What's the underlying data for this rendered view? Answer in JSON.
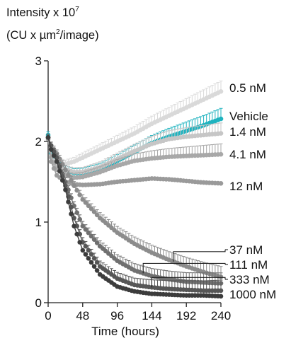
{
  "chart_data": {
    "type": "line",
    "title_line1": "Intensity x 10",
    "title_exp": "7",
    "title_line2_a": "(CU x µm",
    "title_line2_exp": "2",
    "title_line2_b": "/image)",
    "xlabel": "Time (hours)",
    "xlim": [
      0,
      240
    ],
    "ylim": [
      0,
      3
    ],
    "xticks": [
      0,
      48,
      96,
      144,
      192,
      240
    ],
    "yticks": [
      0,
      1,
      2,
      3
    ],
    "xtick_labels": [
      "0",
      "48",
      "96",
      "144",
      "192",
      "240"
    ],
    "ytick_labels": [
      "0",
      "1",
      "2",
      "3"
    ],
    "x_step": 4,
    "series": [
      {
        "name": "0.5 nM",
        "color": "#d9d9d9",
        "error_bars": true,
        "keypoints": [
          [
            0,
            2.05
          ],
          [
            4,
            1.85
          ],
          [
            12,
            1.75
          ],
          [
            24,
            1.72
          ],
          [
            36,
            1.75
          ],
          [
            48,
            1.8
          ],
          [
            72,
            1.9
          ],
          [
            96,
            2.0
          ],
          [
            120,
            2.1
          ],
          [
            144,
            2.22
          ],
          [
            168,
            2.32
          ],
          [
            192,
            2.42
          ],
          [
            216,
            2.52
          ],
          [
            240,
            2.62
          ]
        ]
      },
      {
        "name": "Vehicle",
        "color": "#1fb3bf",
        "error_bars": true,
        "keypoints": [
          [
            0,
            2.08
          ],
          [
            4,
            1.85
          ],
          [
            12,
            1.72
          ],
          [
            24,
            1.65
          ],
          [
            36,
            1.61
          ],
          [
            48,
            1.61
          ],
          [
            72,
            1.66
          ],
          [
            96,
            1.76
          ],
          [
            120,
            1.87
          ],
          [
            144,
            1.98
          ],
          [
            168,
            2.06
          ],
          [
            192,
            2.13
          ],
          [
            216,
            2.2
          ],
          [
            240,
            2.28
          ]
        ]
      },
      {
        "name": "1.4 nM",
        "color": "#c6c6c6",
        "error_bars": true,
        "keypoints": [
          [
            0,
            2.05
          ],
          [
            4,
            1.82
          ],
          [
            12,
            1.7
          ],
          [
            24,
            1.65
          ],
          [
            36,
            1.62
          ],
          [
            48,
            1.62
          ],
          [
            72,
            1.68
          ],
          [
            96,
            1.78
          ],
          [
            120,
            1.88
          ],
          [
            144,
            1.97
          ],
          [
            168,
            2.03
          ],
          [
            192,
            2.06
          ],
          [
            216,
            2.08
          ],
          [
            240,
            2.1
          ]
        ]
      },
      {
        "name": "4.1 nM",
        "color": "#a8a8a8",
        "error_bars": true,
        "keypoints": [
          [
            0,
            2.05
          ],
          [
            4,
            1.8
          ],
          [
            12,
            1.65
          ],
          [
            24,
            1.58
          ],
          [
            36,
            1.55
          ],
          [
            48,
            1.56
          ],
          [
            72,
            1.62
          ],
          [
            96,
            1.7
          ],
          [
            120,
            1.76
          ],
          [
            144,
            1.79
          ],
          [
            168,
            1.81
          ],
          [
            192,
            1.82
          ],
          [
            216,
            1.83
          ],
          [
            240,
            1.84
          ]
        ]
      },
      {
        "name": "12 nM",
        "color": "#9a9a9a",
        "error_bars": false,
        "keypoints": [
          [
            0,
            2.03
          ],
          [
            4,
            1.75
          ],
          [
            12,
            1.58
          ],
          [
            24,
            1.5
          ],
          [
            36,
            1.47
          ],
          [
            48,
            1.46
          ],
          [
            72,
            1.47
          ],
          [
            96,
            1.5
          ],
          [
            120,
            1.52
          ],
          [
            144,
            1.54
          ],
          [
            168,
            1.53
          ],
          [
            192,
            1.51
          ],
          [
            216,
            1.49
          ],
          [
            240,
            1.48
          ]
        ]
      },
      {
        "name": "37 nM",
        "color": "#8c8c8c",
        "error_bars": true,
        "keypoints": [
          [
            0,
            2.05
          ],
          [
            4,
            1.95
          ],
          [
            12,
            1.85
          ],
          [
            24,
            1.65
          ],
          [
            36,
            1.45
          ],
          [
            48,
            1.28
          ],
          [
            72,
            1.05
          ],
          [
            96,
            0.87
          ],
          [
            120,
            0.73
          ],
          [
            144,
            0.62
          ],
          [
            168,
            0.53
          ],
          [
            192,
            0.45
          ],
          [
            216,
            0.38
          ],
          [
            240,
            0.32
          ]
        ]
      },
      {
        "name": "111 nM",
        "color": "#707070",
        "error_bars": true,
        "keypoints": [
          [
            0,
            2.05
          ],
          [
            4,
            1.95
          ],
          [
            12,
            1.8
          ],
          [
            24,
            1.5
          ],
          [
            36,
            1.2
          ],
          [
            48,
            0.95
          ],
          [
            72,
            0.7
          ],
          [
            96,
            0.52
          ],
          [
            120,
            0.4
          ],
          [
            144,
            0.33
          ],
          [
            168,
            0.29
          ],
          [
            192,
            0.26
          ],
          [
            216,
            0.25
          ],
          [
            240,
            0.24
          ]
        ]
      },
      {
        "name": "333 nM",
        "color": "#565656",
        "error_bars": true,
        "keypoints": [
          [
            0,
            2.05
          ],
          [
            4,
            1.95
          ],
          [
            12,
            1.8
          ],
          [
            24,
            1.45
          ],
          [
            36,
            1.05
          ],
          [
            48,
            0.75
          ],
          [
            72,
            0.45
          ],
          [
            96,
            0.3
          ],
          [
            120,
            0.22
          ],
          [
            144,
            0.19
          ],
          [
            168,
            0.17
          ],
          [
            192,
            0.16
          ],
          [
            216,
            0.15
          ],
          [
            240,
            0.15
          ]
        ]
      },
      {
        "name": "1000 nM",
        "color": "#3c3c3c",
        "error_bars": false,
        "keypoints": [
          [
            0,
            2.05
          ],
          [
            4,
            1.9
          ],
          [
            12,
            1.75
          ],
          [
            24,
            1.4
          ],
          [
            36,
            0.95
          ],
          [
            48,
            0.65
          ],
          [
            72,
            0.35
          ],
          [
            96,
            0.2
          ],
          [
            120,
            0.14
          ],
          [
            144,
            0.11
          ],
          [
            168,
            0.1
          ],
          [
            192,
            0.09
          ],
          [
            216,
            0.09
          ],
          [
            240,
            0.08
          ]
        ]
      }
    ],
    "annotations": [
      {
        "text": "0.5 nM",
        "series": "0.5 nM"
      },
      {
        "text": "Vehicle",
        "series": "Vehicle"
      },
      {
        "text": "1.4 nM",
        "series": "1.4 nM"
      },
      {
        "text": "4.1 nM",
        "series": "4.1 nM"
      },
      {
        "text": "12 nM",
        "series": "12 nM"
      },
      {
        "text": "37 nM",
        "series": "37 nM",
        "callout_x": 174
      },
      {
        "text": "111 nM",
        "series": "111 nM",
        "callout_x": 132
      },
      {
        "text": "333 nM",
        "series": "333 nM",
        "callout_x": 144
      },
      {
        "text": "1000 nM",
        "series": "1000 nM"
      }
    ]
  }
}
